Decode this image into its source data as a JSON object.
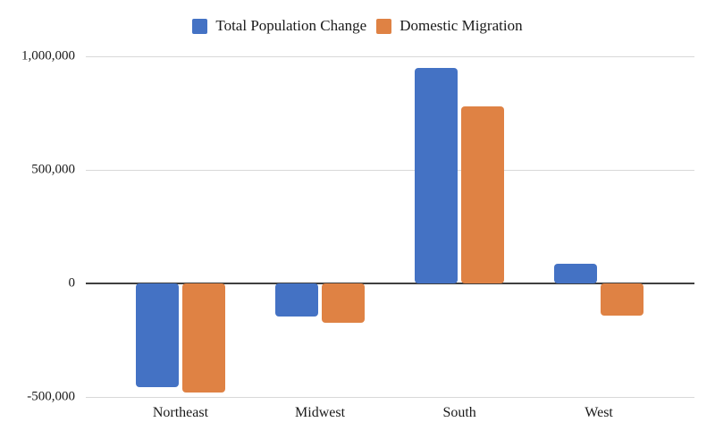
{
  "chart_data": {
    "type": "bar",
    "title": "",
    "xlabel": "",
    "ylabel": "",
    "categories": [
      "Northeast",
      "Midwest",
      "South",
      "West"
    ],
    "series": [
      {
        "name": "Total Population Change",
        "color": "#4472C4",
        "values": [
          -455000,
          -145000,
          950000,
          85000
        ]
      },
      {
        "name": "Domestic Migration",
        "color": "#DF8244",
        "values": [
          -480000,
          -175000,
          780000,
          -140000
        ]
      }
    ],
    "ylim": [
      -500000,
      1000000
    ],
    "yticks": [
      {
        "value": 1000000,
        "label": "1,000,000"
      },
      {
        "value": 500000,
        "label": "500,000"
      },
      {
        "value": 0,
        "label": "0"
      },
      {
        "value": -500000,
        "label": "-500,000"
      }
    ],
    "grid": true,
    "legend_position": "top"
  },
  "colors": {
    "gridline": "#d9d9d9",
    "zero_line": "#3f3f3f",
    "text": "#1a1a1a",
    "background": "#ffffff"
  }
}
